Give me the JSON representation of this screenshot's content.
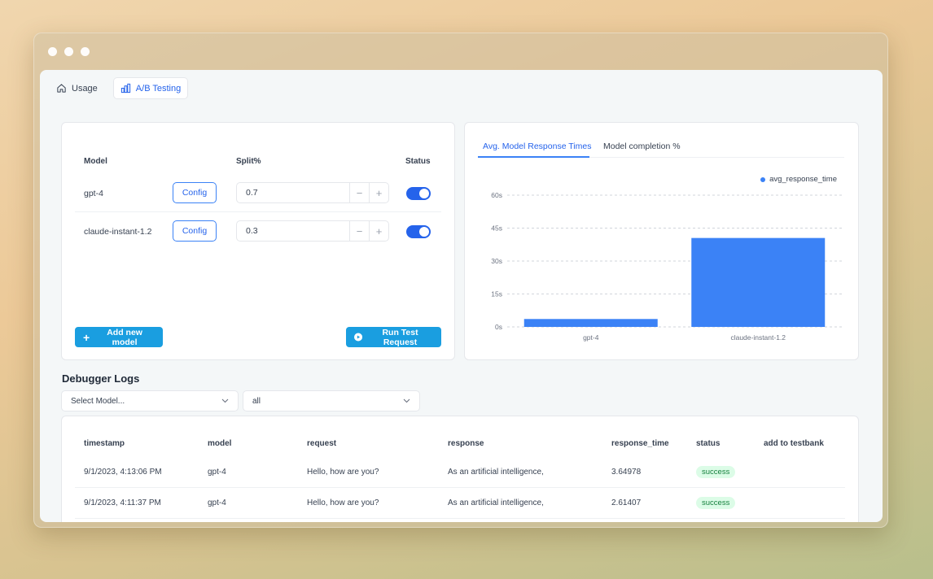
{
  "tabs": [
    {
      "label": "Usage",
      "icon": "home-icon"
    },
    {
      "label": "A/B Testing",
      "icon": "bar-chart-icon"
    }
  ],
  "models_table": {
    "headers": {
      "model": "Model",
      "split": "Split%",
      "status": "Status"
    },
    "config_label": "Config",
    "rows": [
      {
        "name": "gpt-4",
        "split": "0.7",
        "enabled": true
      },
      {
        "name": "claude-instant-1.2",
        "split": "0.3",
        "enabled": true
      }
    ],
    "add_button": "Add new model",
    "run_button": "Run Test Request"
  },
  "chart_tabs": [
    "Avg. Model Response Times",
    "Model completion %"
  ],
  "chart_data": {
    "type": "bar",
    "categories": [
      "gpt-4",
      "claude-instant-1.2"
    ],
    "series": [
      {
        "name": "avg_response_time",
        "values": [
          3.6,
          40.5
        ]
      }
    ],
    "y_ticks": [
      "0s",
      "15s",
      "30s",
      "45s",
      "60s"
    ],
    "ylim": [
      0,
      60
    ],
    "grid": true,
    "legend": "top-right",
    "bar_color": "#3b82f6"
  },
  "debugger": {
    "title": "Debugger Logs",
    "model_select_placeholder": "Select Model...",
    "status_select_value": "all",
    "headers": [
      "timestamp",
      "model",
      "request",
      "response",
      "response_time",
      "status",
      "add to testbank"
    ],
    "rows": [
      {
        "timestamp": "9/1/2023, 4:13:06 PM",
        "model": "gpt-4",
        "request": "Hello, how are you?",
        "response": "As an artificial intelligence,",
        "response_time": "3.64978",
        "status": "success"
      },
      {
        "timestamp": "9/1/2023, 4:11:37 PM",
        "model": "gpt-4",
        "request": "Hello, how are you?",
        "response": "As an artificial intelligence,",
        "response_time": "2.61407",
        "status": "success"
      }
    ]
  }
}
